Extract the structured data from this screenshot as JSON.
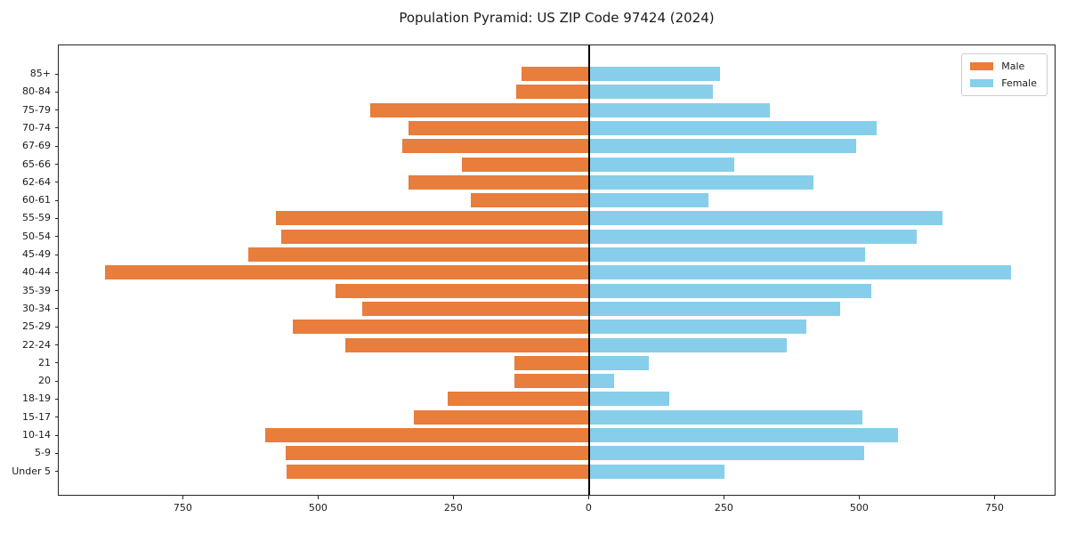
{
  "figure": {
    "title": "Population Pyramid: US ZIP Code 97424 (2024)"
  },
  "legend": {
    "male_label": "Male",
    "female_label": "Female"
  },
  "colors": {
    "male": "#e87d3c",
    "female": "#87ceeb",
    "zero_line": "#000000",
    "spine": "#262626",
    "text": "#1a1a1a",
    "legend_border": "#cccccc",
    "background": "#ffffff"
  },
  "chart_data": {
    "type": "bar",
    "subtype": "population-pyramid",
    "title": "Population Pyramid: US ZIP Code 97424 (2024)",
    "categories_top_to_bottom": [
      "85+",
      "80-84",
      "75-79",
      "70-74",
      "67-69",
      "65-66",
      "62-64",
      "60-61",
      "55-59",
      "50-54",
      "45-49",
      "40-44",
      "35-39",
      "30-34",
      "25-29",
      "22-24",
      "21",
      "20",
      "18-19",
      "15-17",
      "10-14",
      "5-9",
      "Under 5"
    ],
    "series": [
      {
        "name": "Male",
        "side": "left",
        "color": "#e87d3c",
        "values": [
          125,
          135,
          405,
          334,
          346,
          235,
          335,
          220,
          580,
          570,
          631,
          896,
          470,
          420,
          548,
          451,
          139,
          138,
          262,
          324,
          600,
          561,
          559
        ]
      },
      {
        "name": "Female",
        "side": "right",
        "color": "#87ceeb",
        "values": [
          241,
          228,
          334,
          531,
          492,
          268,
          414,
          219,
          652,
          604,
          510,
          779,
          521,
          464,
          400,
          365,
          109,
          46,
          147,
          505,
          570,
          507,
          249
        ]
      }
    ],
    "x_tick_values": [
      -750,
      -500,
      -250,
      0,
      250,
      500,
      750
    ],
    "x_tick_labels": [
      "750",
      "500",
      "250",
      "0",
      "250",
      "500",
      "750"
    ],
    "xlim": [
      -980.8,
      862.8
    ],
    "grid": false,
    "legend_position": "upper right",
    "zero_line": true
  }
}
